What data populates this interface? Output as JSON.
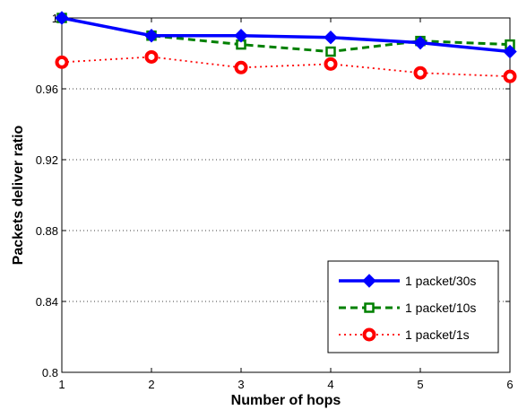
{
  "chart_data": {
    "type": "line",
    "xlabel": "Number of hops",
    "ylabel": "Packets deliver ratio",
    "xlim": [
      1,
      6
    ],
    "ylim": [
      0.8,
      1.0
    ],
    "x_ticks": [
      "1",
      "2",
      "3",
      "4",
      "5",
      "6"
    ],
    "y_ticks": [
      "0.8",
      "0.84",
      "0.88",
      "0.92",
      "0.96",
      "1"
    ],
    "grid": "horizontal dotted",
    "legend_position": "bottom-right",
    "x": [
      1,
      2,
      3,
      4,
      5,
      6
    ],
    "series": [
      {
        "name": "1 packet/30s",
        "values": [
          1.0,
          0.99,
          0.99,
          0.989,
          0.986,
          0.981
        ],
        "color": "#0000ff",
        "line": "solid",
        "marker": "diamond"
      },
      {
        "name": "1 packet/10s",
        "values": [
          1.0,
          0.99,
          0.985,
          0.981,
          0.987,
          0.985
        ],
        "color": "#008000",
        "line": "dashed",
        "marker": "square"
      },
      {
        "name": "1 packet/1s",
        "values": [
          0.975,
          0.978,
          0.972,
          0.974,
          0.969,
          0.967
        ],
        "color": "#ff0000",
        "line": "dotted",
        "marker": "circle"
      }
    ]
  }
}
